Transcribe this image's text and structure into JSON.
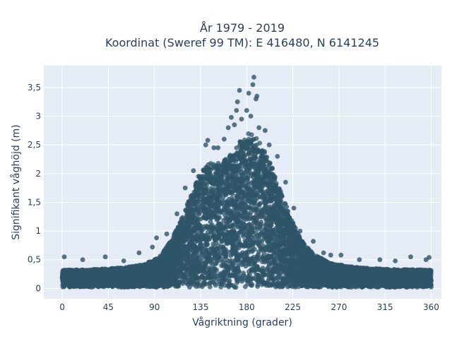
{
  "chart_data": {
    "type": "scatter",
    "title": "År 1979 - 2019",
    "subtitle": "Koordinat (Sweref 99 TM): E 416480, N 6141245",
    "xlabel": "Vågriktning (grader)",
    "ylabel": "Signifikant våghöjd (m)",
    "xlim": [
      -18,
      370
    ],
    "ylim": [
      -0.18,
      3.88
    ],
    "x_ticks": [
      0,
      45,
      90,
      135,
      180,
      225,
      270,
      315,
      360
    ],
    "x_tick_labels": [
      "0",
      "45",
      "90",
      "135",
      "180",
      "225",
      "270",
      "315",
      "360"
    ],
    "y_ticks": [
      0,
      0.5,
      1,
      1.5,
      2,
      2.5,
      3,
      3.5
    ],
    "y_tick_labels": [
      "0",
      "0,5",
      "1",
      "1,5",
      "2",
      "2,5",
      "3",
      "3,5"
    ],
    "grid": true,
    "legend": "none",
    "series": [
      {
        "color": "#2f5468",
        "envelope": {
          "x": [
            0,
            30,
            60,
            80,
            95,
            105,
            115,
            125,
            135,
            145,
            155,
            165,
            175,
            185,
            195,
            205,
            215,
            225,
            235,
            245,
            260,
            280,
            300,
            320,
            340,
            360
          ],
          "upper": [
            0.32,
            0.33,
            0.36,
            0.42,
            0.55,
            0.8,
            1.15,
            1.6,
            2.05,
            2.2,
            2.2,
            2.35,
            2.6,
            2.75,
            2.5,
            2.1,
            1.6,
            1.15,
            0.8,
            0.6,
            0.45,
            0.38,
            0.35,
            0.33,
            0.33,
            0.32
          ]
        },
        "extreme_points": [
          {
            "x": 2,
            "y": 0.55
          },
          {
            "x": 20,
            "y": 0.5
          },
          {
            "x": 42,
            "y": 0.55
          },
          {
            "x": 60,
            "y": 0.48
          },
          {
            "x": 75,
            "y": 0.62
          },
          {
            "x": 88,
            "y": 0.72
          },
          {
            "x": 92,
            "y": 0.88
          },
          {
            "x": 102,
            "y": 0.95
          },
          {
            "x": 112,
            "y": 1.3
          },
          {
            "x": 120,
            "y": 1.75
          },
          {
            "x": 128,
            "y": 2.05
          },
          {
            "x": 140,
            "y": 2.5
          },
          {
            "x": 142,
            "y": 2.58
          },
          {
            "x": 148,
            "y": 2.45
          },
          {
            "x": 152,
            "y": 2.45
          },
          {
            "x": 158,
            "y": 2.6
          },
          {
            "x": 162,
            "y": 2.8
          },
          {
            "x": 165,
            "y": 2.98
          },
          {
            "x": 168,
            "y": 2.85
          },
          {
            "x": 170,
            "y": 3.1
          },
          {
            "x": 171,
            "y": 3.25
          },
          {
            "x": 173,
            "y": 3.45
          },
          {
            "x": 175,
            "y": 2.95
          },
          {
            "x": 180,
            "y": 3.1
          },
          {
            "x": 182,
            "y": 3.4
          },
          {
            "x": 184,
            "y": 3.0
          },
          {
            "x": 186,
            "y": 3.55
          },
          {
            "x": 187,
            "y": 3.68
          },
          {
            "x": 189,
            "y": 3.3
          },
          {
            "x": 190,
            "y": 3.35
          },
          {
            "x": 192,
            "y": 2.8
          },
          {
            "x": 198,
            "y": 2.75
          },
          {
            "x": 202,
            "y": 2.5
          },
          {
            "x": 210,
            "y": 2.3
          },
          {
            "x": 218,
            "y": 1.85
          },
          {
            "x": 226,
            "y": 1.4
          },
          {
            "x": 232,
            "y": 1.0
          },
          {
            "x": 245,
            "y": 0.82
          },
          {
            "x": 255,
            "y": 0.62
          },
          {
            "x": 262,
            "y": 0.58
          },
          {
            "x": 272,
            "y": 0.58
          },
          {
            "x": 290,
            "y": 0.5
          },
          {
            "x": 310,
            "y": 0.5
          },
          {
            "x": 325,
            "y": 0.48
          },
          {
            "x": 340,
            "y": 0.55
          },
          {
            "x": 355,
            "y": 0.5
          },
          {
            "x": 358,
            "y": 0.54
          }
        ]
      }
    ]
  }
}
